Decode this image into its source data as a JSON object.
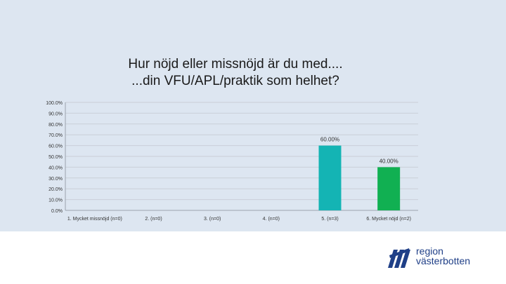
{
  "chart_data": {
    "type": "bar",
    "title": [
      "Hur nöjd eller missnöjd är du med....",
      "...din VFU/APL/praktik som helhet?"
    ],
    "categories": [
      "1. Mycket missnöjd (n=0)",
      "2. (n=0)",
      "3. (n=0)",
      "4. (n=0)",
      "5. (n=3)",
      "6. Mycket nöjd (n=2)"
    ],
    "values": [
      0,
      0,
      0,
      0,
      60,
      40
    ],
    "data_labels": [
      "",
      "",
      "",
      "",
      "60.00%",
      "40.00%"
    ],
    "bar_colors": [
      "#1f7ec8",
      "#1f7ec8",
      "#1f7ec8",
      "#1f7ec8",
      "#14b4b4",
      "#11b052"
    ],
    "y_ticks": [
      0,
      10,
      20,
      30,
      40,
      50,
      60,
      70,
      80,
      90,
      100
    ],
    "y_tick_labels": [
      "0.0%",
      "10.0%",
      "20.0%",
      "30.0%",
      "40.0%",
      "50.0%",
      "60.0%",
      "70.0%",
      "80.0%",
      "90.0%",
      "100.0%"
    ],
    "ylim": [
      0,
      100
    ],
    "xlabel": "",
    "ylabel": "",
    "grid": true
  },
  "logo": {
    "line1": "region",
    "line2": "västerbotten",
    "color": "#1f3f87"
  }
}
